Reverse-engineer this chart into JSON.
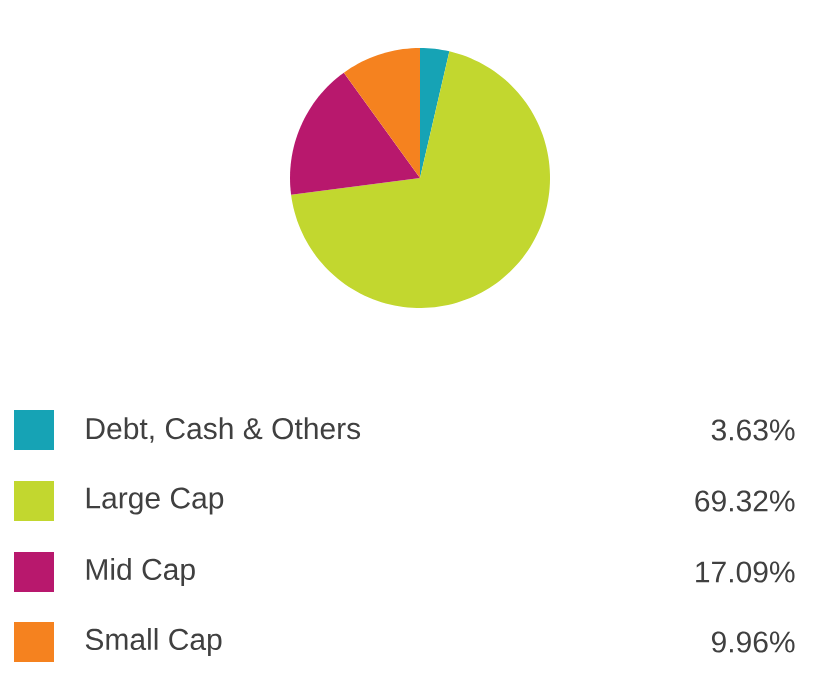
{
  "chart_data": {
    "type": "pie",
    "categories": [
      "Debt, Cash & Others",
      "Large Cap",
      "Mid Cap",
      "Small Cap"
    ],
    "values": [
      3.63,
      69.32,
      17.09,
      9.96
    ],
    "value_labels": [
      "3.63%",
      "69.32%",
      "17.09%",
      "9.96%"
    ],
    "colors": [
      "#16a3b5",
      "#c2d72f",
      "#b8186d",
      "#f5821f"
    ],
    "legend": "bottom"
  }
}
